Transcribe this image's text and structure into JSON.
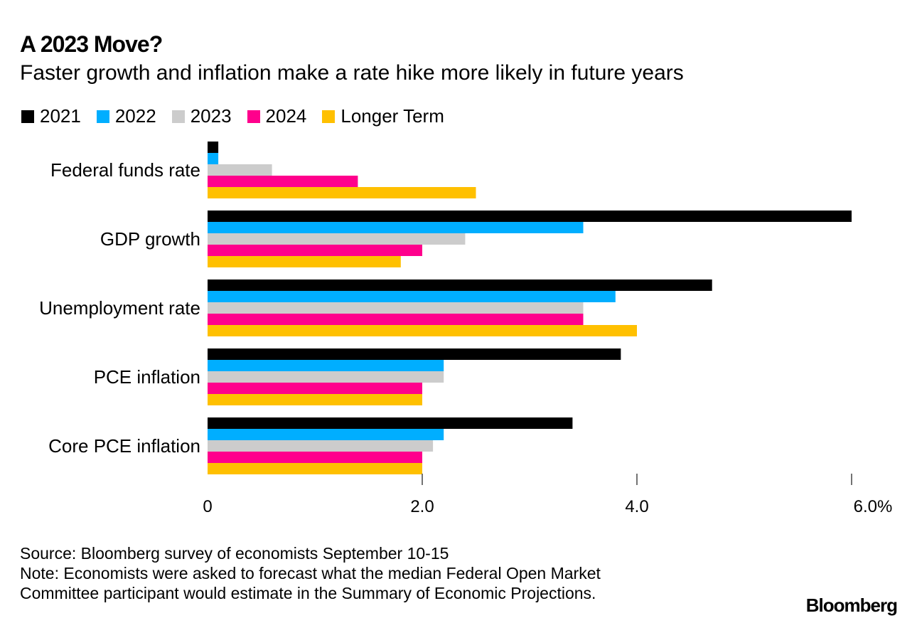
{
  "chart_data": {
    "type": "bar",
    "orientation": "horizontal",
    "title": "A 2023 Move?",
    "subtitle": "Faster growth and inflation make a rate hike more likely in future years",
    "categories": [
      "Federal funds rate",
      "GDP growth",
      "Unemployment rate",
      "PCE inflation",
      "Core PCE inflation"
    ],
    "series": [
      {
        "name": "2021",
        "color": "#000000",
        "values": [
          0.1,
          6.0,
          4.7,
          3.85,
          3.4
        ]
      },
      {
        "name": "2022",
        "color": "#00aeff",
        "values": [
          0.1,
          3.5,
          3.8,
          2.2,
          2.2
        ]
      },
      {
        "name": "2023",
        "color": "#cccccc",
        "values": [
          0.6,
          2.4,
          3.5,
          2.2,
          2.1
        ]
      },
      {
        "name": "2024",
        "color": "#ff008c",
        "values": [
          1.4,
          2.0,
          3.5,
          2.0,
          2.0
        ]
      },
      {
        "name": "Longer Term",
        "color": "#ffc000",
        "values": [
          2.5,
          1.8,
          4.0,
          2.0,
          2.0
        ]
      }
    ],
    "xlim": [
      0,
      6.0
    ],
    "xticks": [
      0,
      2.0,
      4.0,
      6.0
    ],
    "xtick_labels": [
      "0",
      "2.0",
      "4.0",
      "6.0%"
    ],
    "xlabel": "",
    "ylabel": "",
    "grid": false,
    "legend_position": "top-left"
  },
  "footer": {
    "source": "Source: Bloomberg survey of economists September 10-15",
    "note_line1": "Note: Economists were asked to forecast what the median Federal Open Market",
    "note_line2": "Committee participant would estimate in the Summary of Economic Projections."
  },
  "brand": "Bloomberg"
}
